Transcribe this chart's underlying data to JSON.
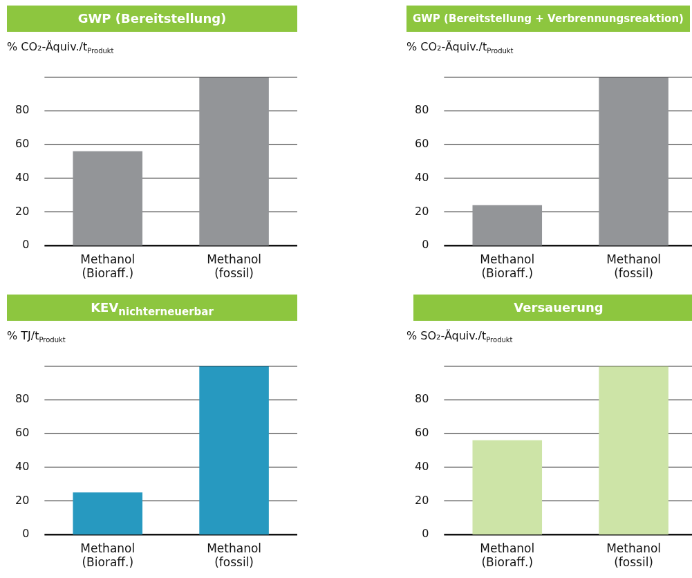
{
  "chart_data": [
    {
      "type": "bar",
      "title": "GWP (Bereitstellung)",
      "ylabel": "% CO₂-Äquiv./t$_{Produkt}$",
      "categories": [
        "Methanol (Bioraff.)",
        "Methanol (fossil)"
      ],
      "values": [
        56,
        100
      ],
      "color": "#939598",
      "ylim": [
        0,
        100
      ],
      "yticks": [
        0,
        20,
        40,
        60,
        80
      ],
      "grid": "y",
      "legend": false
    },
    {
      "type": "bar",
      "title": "GWP (Bereitstellung + Verbrennungsreaktion)",
      "ylabel": "% CO₂-Äquiv./t$_{Produkt}$",
      "categories": [
        "Methanol (Bioraff.)",
        "Methanol (fossil)"
      ],
      "values": [
        24,
        100
      ],
      "color": "#939598",
      "ylim": [
        0,
        100
      ],
      "yticks": [
        0,
        20,
        40,
        60,
        80
      ],
      "grid": "y",
      "legend": false
    },
    {
      "type": "bar",
      "title": "KEV$_{nichterneuerbar}$",
      "ylabel": "% TJ/t$_{Produkt}$",
      "categories": [
        "Methanol (Bioraff.)",
        "Methanol (fossil)"
      ],
      "values": [
        25,
        100
      ],
      "color": "#2799c0",
      "ylim": [
        0,
        100
      ],
      "yticks": [
        0,
        20,
        40,
        60,
        80
      ],
      "grid": "y",
      "legend": false
    },
    {
      "type": "bar",
      "title": "Versauerung",
      "ylabel": "% SO₂-Äquiv./t$_{Produkt}$",
      "categories": [
        "Methanol (Bioraff.)",
        "Methanol (fossil)"
      ],
      "values": [
        56,
        100
      ],
      "color": "#cde4a7",
      "ylim": [
        0,
        100
      ],
      "yticks": [
        0,
        20,
        40,
        60,
        80
      ],
      "grid": "y",
      "legend": false
    }
  ]
}
